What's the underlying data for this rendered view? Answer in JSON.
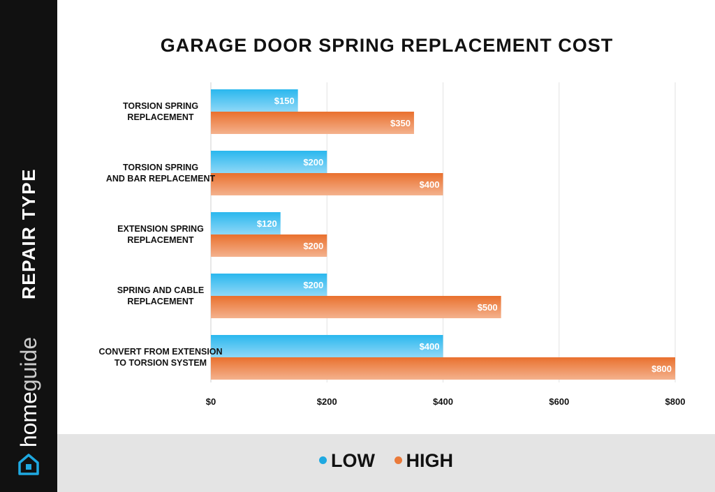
{
  "brand": {
    "home": "home",
    "guide": "guide"
  },
  "sidebar_label": "REPAIR TYPE",
  "legend": [
    {
      "label": "LOW",
      "color": "#1fa9e1"
    },
    {
      "label": "HIGH",
      "color": "#ea7a3a"
    }
  ],
  "chart_data": {
    "type": "bar",
    "orientation": "horizontal",
    "title": "GARAGE DOOR SPRING REPLACEMENT COST",
    "ylabel": "REPAIR TYPE",
    "xlabel": "",
    "categories": [
      [
        "TORSION SPRING",
        "REPLACEMENT"
      ],
      [
        "TORSION SPRING",
        "AND BAR REPLACEMENT"
      ],
      [
        "EXTENSION SPRING",
        "REPLACEMENT"
      ],
      [
        "SPRING AND CABLE",
        "REPLACEMENT"
      ],
      [
        "CONVERT FROM EXTENSION",
        "TO TORSION SYSTEM"
      ]
    ],
    "series": [
      {
        "name": "LOW",
        "color": "#1fa9e1",
        "values": [
          150,
          200,
          120,
          200,
          400
        ],
        "labels": [
          "$150",
          "$200",
          "$120",
          "$200",
          "$400"
        ]
      },
      {
        "name": "HIGH",
        "color": "#ea7a3a",
        "values": [
          350,
          400,
          200,
          500,
          800
        ],
        "labels": [
          "$350",
          "$400",
          "$200",
          "$500",
          "$800"
        ]
      }
    ],
    "xlim": [
      0,
      800
    ],
    "xticks": [
      0,
      200,
      400,
      600,
      800
    ],
    "xtick_labels": [
      "$0",
      "$200",
      "$400",
      "$600",
      "$800"
    ],
    "grid": "vertical",
    "legend_position": "bottom"
  }
}
